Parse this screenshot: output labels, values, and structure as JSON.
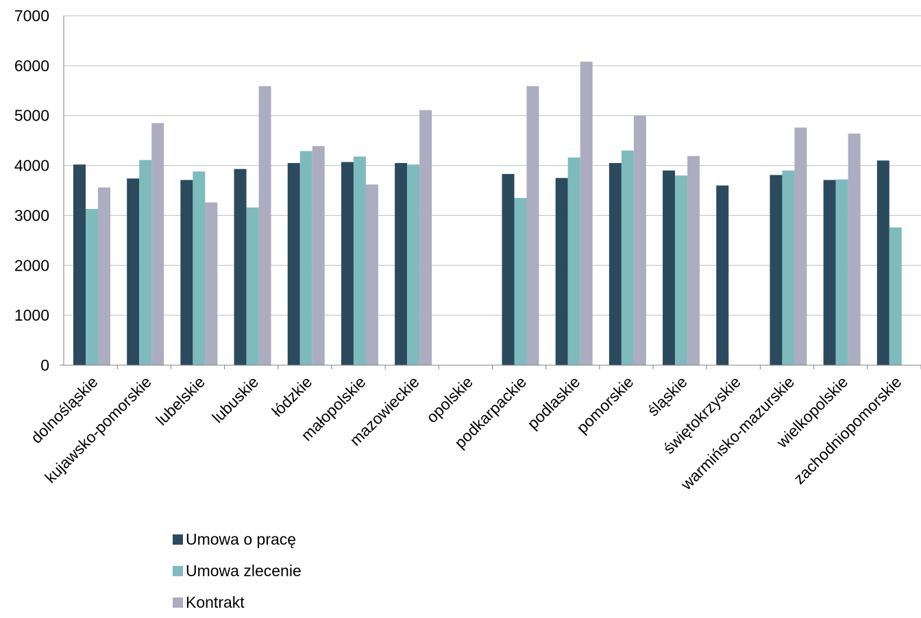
{
  "chart_data": {
    "type": "bar",
    "title": "",
    "xlabel": "",
    "ylabel": "",
    "ylim": [
      0,
      7000
    ],
    "yticks": [
      0,
      1000,
      2000,
      3000,
      4000,
      5000,
      6000,
      7000
    ],
    "grid": true,
    "legend_position": "bottom-left",
    "categories": [
      "dolnośląskie",
      "kujawsko-pomorskie",
      "lubelskie",
      "lubuskie",
      "łódzkie",
      "małopolskie",
      "mazowieckie",
      "opolskie",
      "podkarpackie",
      "podlaskie",
      "pomorskie",
      "śląskie",
      "świętokrzyskie",
      "warmińsko-mazurskie",
      "wielkopolskie",
      "zachodniopomorskie"
    ],
    "series": [
      {
        "name": "Umowa o pracę",
        "color": "#2b4a5e",
        "values": [
          4020,
          3740,
          3710,
          3930,
          4050,
          4070,
          4050,
          null,
          3830,
          3750,
          4050,
          3900,
          3600,
          3810,
          3710,
          4100
        ]
      },
      {
        "name": "Umowa zlecenie",
        "color": "#7fbbbd",
        "values": [
          3130,
          4110,
          3880,
          3160,
          4290,
          4180,
          4020,
          null,
          3350,
          4160,
          4300,
          3800,
          null,
          3900,
          3720,
          2760
        ]
      },
      {
        "name": "Kontrakt",
        "color": "#adadc1",
        "values": [
          3560,
          4850,
          3260,
          5590,
          4390,
          3620,
          5110,
          null,
          5590,
          6080,
          5000,
          4190,
          null,
          4760,
          4640,
          null
        ]
      }
    ]
  }
}
